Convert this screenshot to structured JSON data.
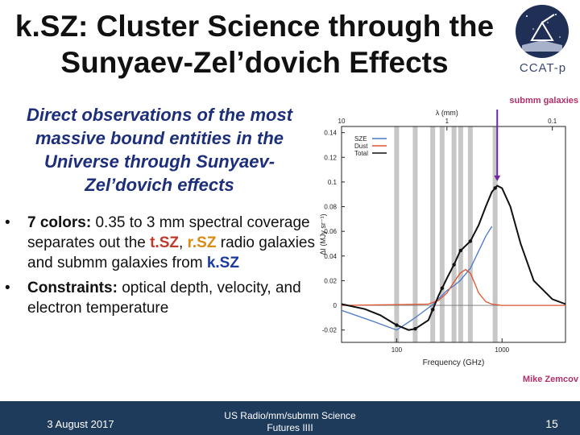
{
  "title": {
    "line1": "k.SZ: Cluster Science through the",
    "line2": "Sunyaev-Zel’dovich Effects"
  },
  "logo": {
    "text": "CCAT-p"
  },
  "intro": {
    "line1": "Direct observations of the most",
    "line2": "massive bound entities in the",
    "line3": "Universe through Sunyaev-",
    "line4": "Zel’dovich effects"
  },
  "bullets": {
    "b1": {
      "label": "7 colors:",
      "text1": "0.35 to 3 mm spectral coverage separates out the",
      "tsz": "t.SZ",
      "comma": ",",
      "rsz": "r.SZ",
      "text2": "radio galaxies and submm galaxies from",
      "ksz": "k.SZ"
    },
    "b2": {
      "label": "Constraints:",
      "text": "optical depth, velocity, and electron temperature"
    }
  },
  "chart_data": {
    "type": "line",
    "xlabel": "Frequency (GHz)",
    "ylabel": "ΔI (MJy sr⁻¹)",
    "top_axis_label": "λ (mm)",
    "top_ticks": [
      "10",
      "1",
      "0.1"
    ],
    "x_ticks": [
      "100",
      "1000"
    ],
    "y_ticks": [
      "-0.02",
      "0",
      "0.02",
      "0.04",
      "0.06",
      "0.08",
      "0.1",
      "0.12",
      "0.14"
    ],
    "xlim": [
      30,
      4000
    ],
    "ylim": [
      -0.03,
      0.145
    ],
    "x_scale": "log",
    "legend_position": "top-left",
    "legend": [
      "SZE",
      "Dust",
      "Total"
    ],
    "annotation": "submm galaxies",
    "credit": "Mike Zemcov",
    "series": [
      {
        "name": "SZE",
        "color": "#4a78c8",
        "x": [
          30,
          60,
          100,
          150,
          200,
          217,
          240,
          270,
          300,
          350,
          400,
          500,
          600,
          700,
          800
        ],
        "y": [
          -0.004,
          -0.013,
          -0.02,
          -0.01,
          -0.002,
          0.0,
          0.004,
          0.008,
          0.012,
          0.016,
          0.02,
          0.03,
          0.044,
          0.056,
          0.064
        ]
      },
      {
        "name": "Dust",
        "color": "#e0532f",
        "x": [
          30,
          200,
          250,
          300,
          350,
          400,
          450,
          500,
          550,
          600,
          700,
          800,
          1000,
          4000
        ],
        "y": [
          0,
          0.001,
          0.004,
          0.01,
          0.019,
          0.026,
          0.029,
          0.026,
          0.018,
          0.01,
          0.003,
          0.001,
          0.0,
          0.0
        ]
      },
      {
        "name": "Total",
        "color": "#111111",
        "x": [
          30,
          50,
          70,
          100,
          130,
          150,
          200,
          250,
          300,
          350,
          400,
          500,
          600,
          700,
          800,
          900,
          1000,
          1200,
          1500,
          2000,
          3000,
          4000
        ],
        "y": [
          0.001,
          -0.003,
          -0.008,
          -0.016,
          -0.02,
          -0.019,
          -0.012,
          0.008,
          0.022,
          0.033,
          0.044,
          0.052,
          0.065,
          0.08,
          0.092,
          0.097,
          0.095,
          0.08,
          0.05,
          0.02,
          0.005,
          0.001
        ]
      }
    ],
    "bands_ghz": [
      100,
      150,
      220,
      270,
      350,
      405,
      500,
      860
    ]
  },
  "footer": {
    "date": "3 August 2017",
    "center_line1": "US Radio/mm/submm Science",
    "center_line2": "Futures IIII",
    "page": "15"
  }
}
